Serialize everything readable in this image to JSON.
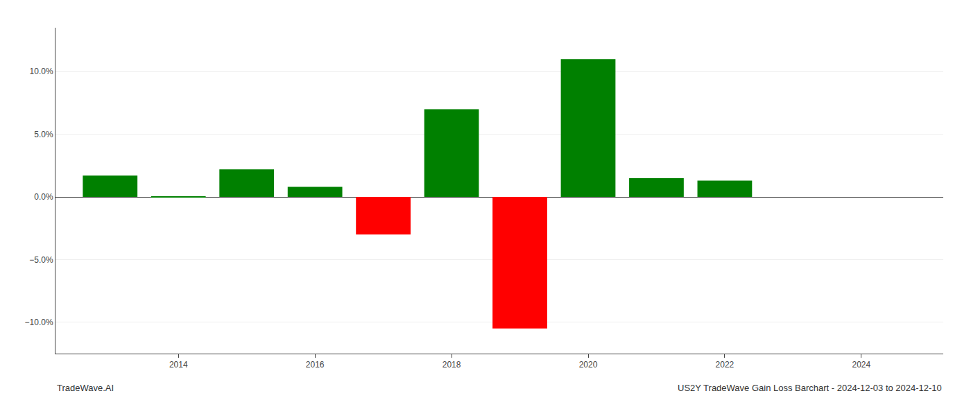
{
  "chart_data": {
    "type": "bar",
    "x": [
      2013,
      2014,
      2015,
      2016,
      2017,
      2018,
      2019,
      2020,
      2021,
      2022,
      2023
    ],
    "values": [
      1.7,
      0.05,
      2.2,
      0.8,
      -3.0,
      7.0,
      -10.5,
      11.0,
      1.5,
      1.3,
      0.0
    ],
    "colors": [
      "#008000",
      "#008000",
      "#008000",
      "#008000",
      "#ff0000",
      "#008000",
      "#ff0000",
      "#008000",
      "#008000",
      "#008000",
      "#008000"
    ],
    "xlim": [
      2012.2,
      2025.2
    ],
    "xticks": [
      2014,
      2016,
      2018,
      2020,
      2022,
      2024
    ],
    "ylim": [
      -12.5,
      13.5
    ],
    "yticks": [
      {
        "value": -10.0,
        "label": "−10.0%"
      },
      {
        "value": -5.0,
        "label": "−5.0%"
      },
      {
        "value": 0.0,
        "label": "0.0%"
      },
      {
        "value": 5.0,
        "label": "5.0%"
      },
      {
        "value": 10.0,
        "label": "10.0%"
      }
    ],
    "grid": true,
    "annotations": [
      "TradeWave.AI",
      "US2Y TradeWave Gain Loss Barchart - 2024-12-03 to 2024-12-10"
    ]
  }
}
